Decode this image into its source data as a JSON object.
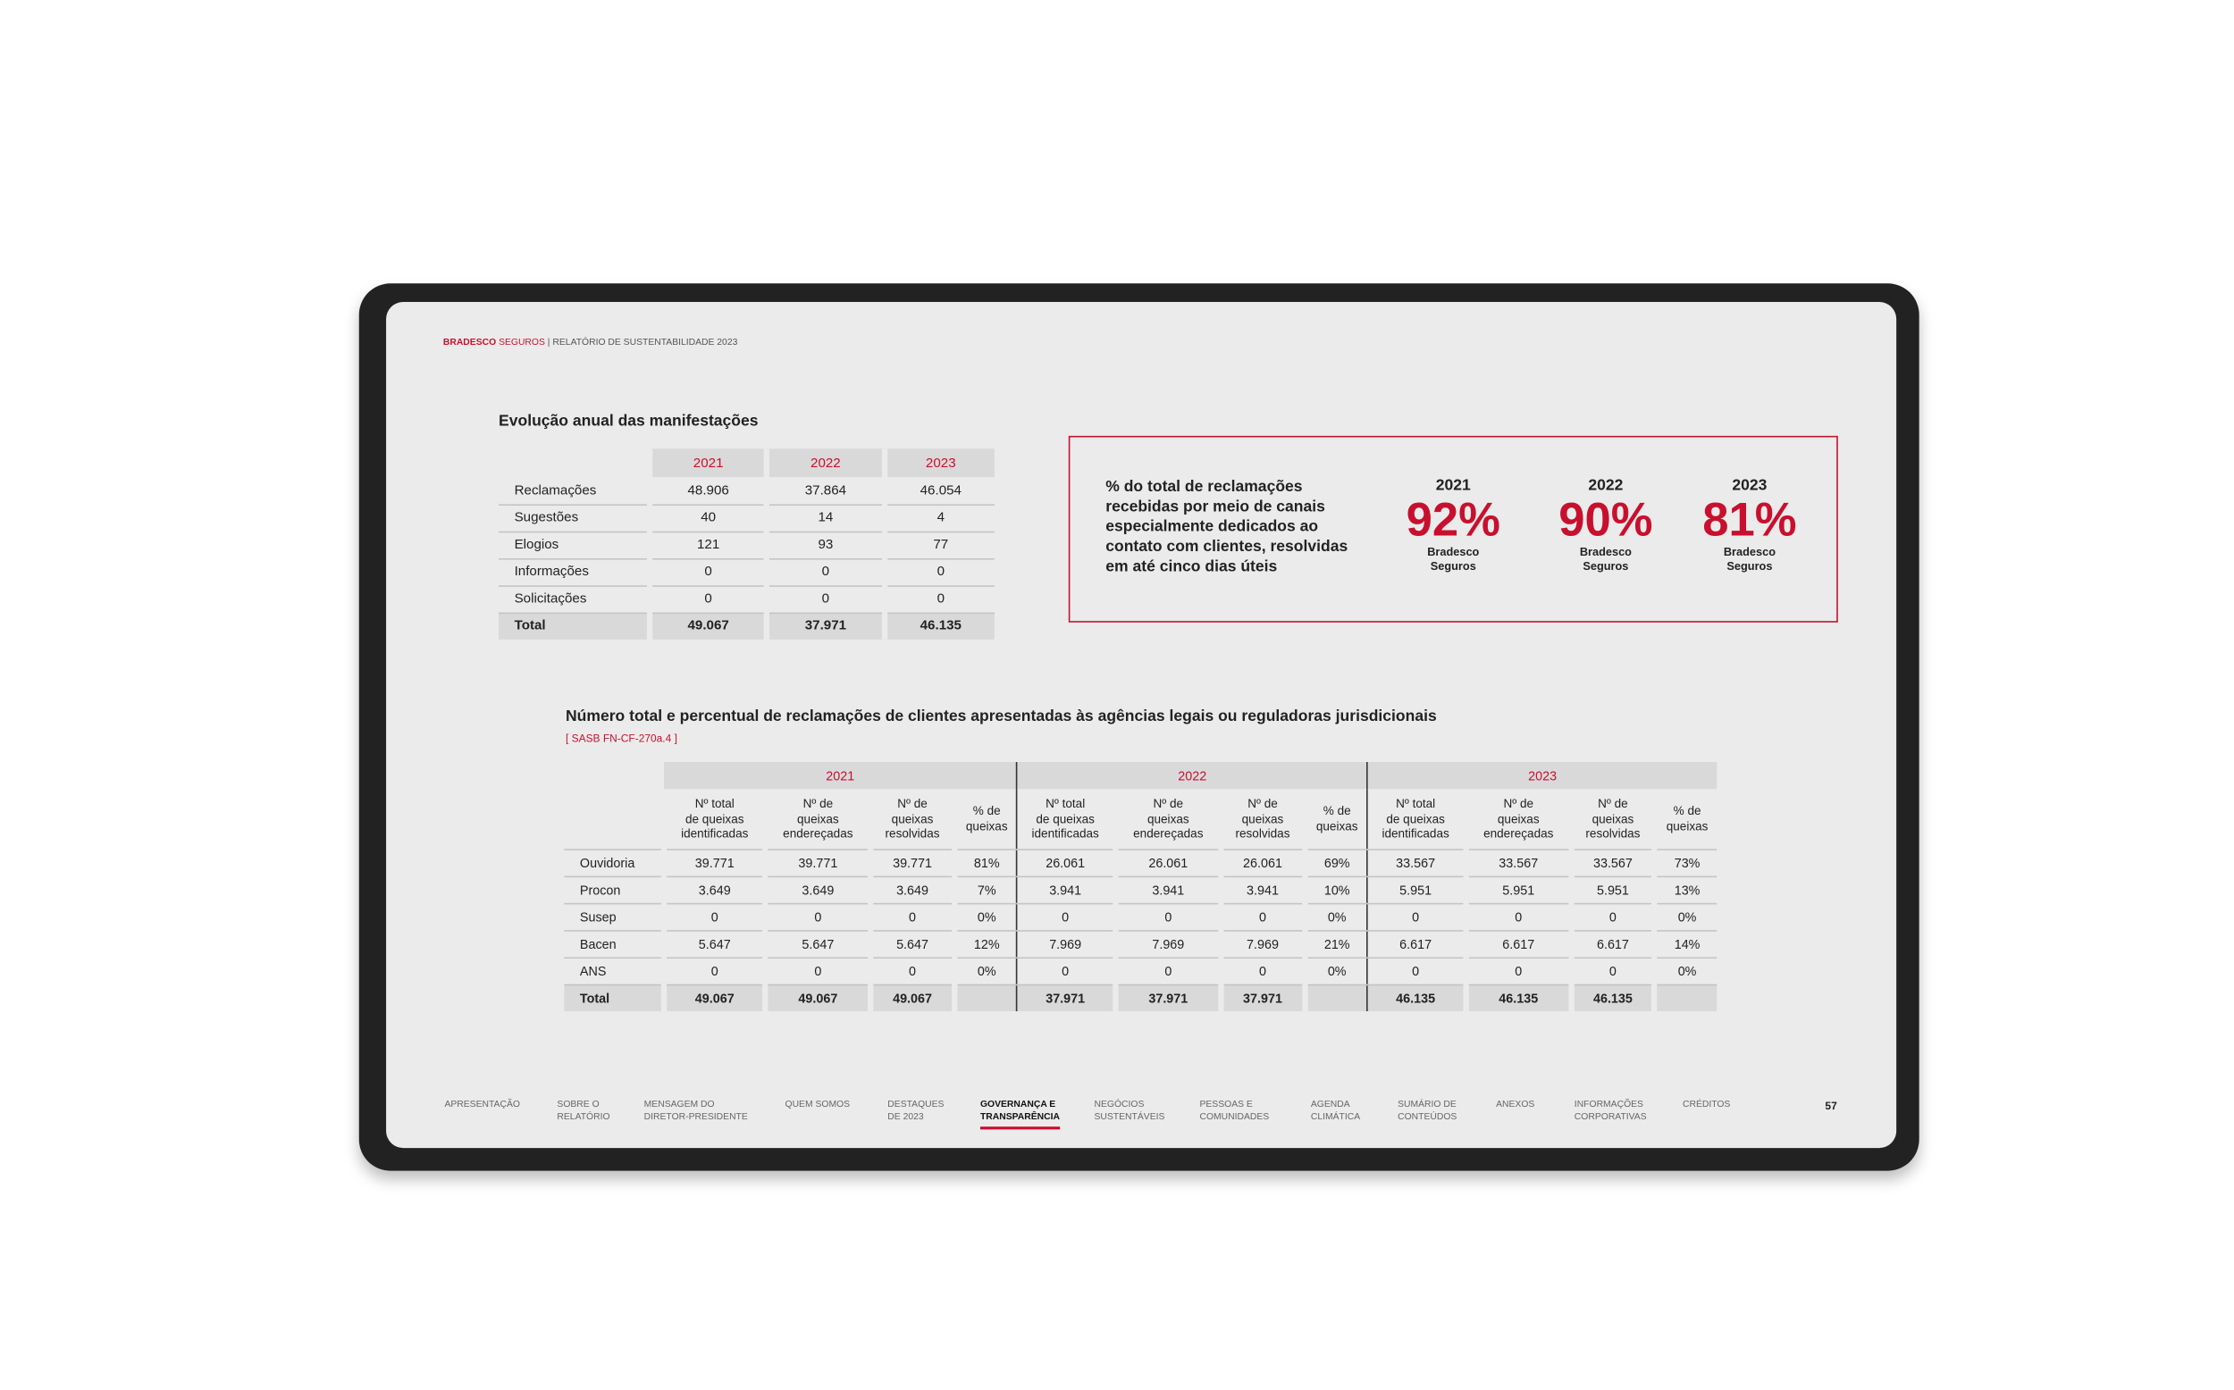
{
  "header": {
    "brand": "BRADESCO",
    "brand_suffix": "SEGUROS",
    "separator": "|",
    "report": "RELATÓRIO DE SUSTENTABILIDADE 2023"
  },
  "table1": {
    "title": "Evolução anual das manifestações",
    "years": [
      "2021",
      "2022",
      "2023"
    ],
    "rows": [
      [
        "Reclamações",
        "48.906",
        "37.864",
        "46.054"
      ],
      [
        "Sugestões",
        "40",
        "14",
        "4"
      ],
      [
        "Elogios",
        "121",
        "93",
        "77"
      ],
      [
        "Informações",
        "0",
        "0",
        "0"
      ],
      [
        "Solicitações",
        "0",
        "0",
        "0"
      ],
      [
        "Total",
        "49.067",
        "37.971",
        "46.135"
      ]
    ]
  },
  "highlight": {
    "text": "% do total de reclamações recebidas por meio de canais especialmente dedicados ao contato com clientes, resolvidas em até cinco dias úteis",
    "items": [
      {
        "year": "2021",
        "value": "92%",
        "label": "Bradesco\nSeguros"
      },
      {
        "year": "2022",
        "value": "90%",
        "label": "Bradesco\nSeguros"
      },
      {
        "year": "2023",
        "value": "81%",
        "label": "Bradesco\nSeguros"
      }
    ]
  },
  "table2": {
    "title": "Número total e percentual de reclamações de clientes apresentadas às agências legais ou reguladoras jurisdicionais",
    "reference": "[ SASB FN-CF-270a.4 ]",
    "years": [
      "2021",
      "2022",
      "2023"
    ],
    "subheaders": [
      "Nº total\nde queixas\nidentificadas",
      "Nº de\nqueixas\nendereçadas",
      "Nº de\nqueixas\nresolvidas",
      "% de\nqueixas",
      "Nº total\nde queixas\nidentificadas",
      "Nº de\nqueixas\nendereçadas",
      "Nº de\nqueixas\nresolvidas",
      "% de\nqueixas",
      "Nº total\nde queixas\nidentificadas",
      "Nº de\nqueixas\nendereçadas",
      "Nº de\nqueixas\nresolvidas",
      "% de\nqueixas"
    ],
    "rows": [
      [
        "Ouvidoria",
        "39.771",
        "39.771",
        "39.771",
        "81%",
        "26.061",
        "26.061",
        "26.061",
        "69%",
        "33.567",
        "33.567",
        "33.567",
        "73%"
      ],
      [
        "Procon",
        "3.649",
        "3.649",
        "3.649",
        "7%",
        "3.941",
        "3.941",
        "3.941",
        "10%",
        "5.951",
        "5.951",
        "5.951",
        "13%"
      ],
      [
        "Susep",
        "0",
        "0",
        "0",
        "0%",
        "0",
        "0",
        "0",
        "0%",
        "0",
        "0",
        "0",
        "0%"
      ],
      [
        "Bacen",
        "5.647",
        "5.647",
        "5.647",
        "12%",
        "7.969",
        "7.969",
        "7.969",
        "21%",
        "6.617",
        "6.617",
        "6.617",
        "14%"
      ],
      [
        "ANS",
        "0",
        "0",
        "0",
        "0%",
        "0",
        "0",
        "0",
        "0%",
        "0",
        "0",
        "0",
        "0%"
      ],
      [
        "Total",
        "49.067",
        "49.067",
        "49.067",
        null,
        "37.971",
        "37.971",
        "37.971",
        null,
        "46.135",
        "46.135",
        "46.135",
        null
      ]
    ]
  },
  "nav": {
    "items": [
      "APRESENTAÇÃO",
      "SOBRE O\nRELATÓRIO",
      "MENSAGEM DO\nDIRETOR-PRESIDENTE",
      "QUEM SOMOS",
      "DESTAQUES\nDE 2023",
      "GOVERNANÇA E\nTRANSPARÊNCIA",
      "NEGÓCIOS\nSUSTENTÁVEIS",
      "PESSOAS E\nCOMUNIDADES",
      "AGENDA\nCLIMÁTICA",
      "SUMÁRIO DE\nCONTEÚDOS",
      "ANEXOS",
      "INFORMAÇÕES\nCORPORATIVAS",
      "CRÉDITOS"
    ],
    "active": 5,
    "page": "57"
  }
}
